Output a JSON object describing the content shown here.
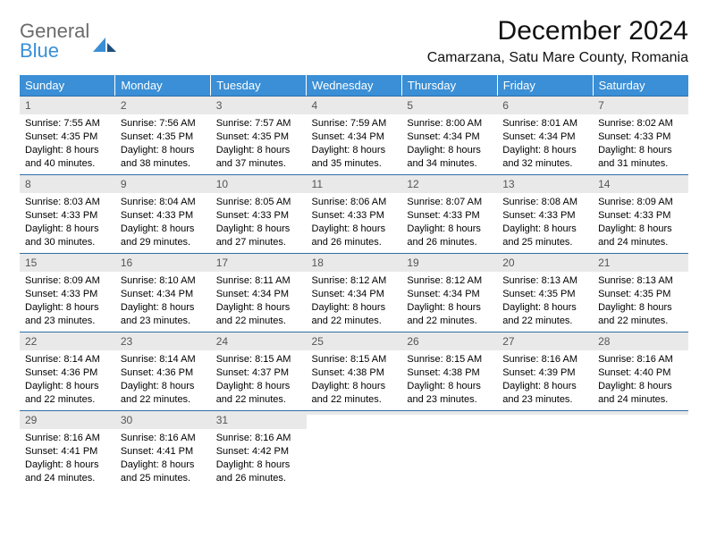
{
  "logo": {
    "text1": "General",
    "text2": "Blue"
  },
  "title": "December 2024",
  "location": "Camarzana, Satu Mare County, Romania",
  "colors": {
    "header_bg": "#3a8fd6",
    "header_text": "#ffffff",
    "daynum_bg": "#e9e9e9",
    "daynum_border": "#2f6fa8",
    "logo_gray": "#6b6b6b",
    "logo_blue": "#3a8fd6",
    "body_text": "#000000",
    "page_bg": "#ffffff"
  },
  "weekdays": [
    "Sunday",
    "Monday",
    "Tuesday",
    "Wednesday",
    "Thursday",
    "Friday",
    "Saturday"
  ],
  "weeks": [
    [
      {
        "n": "1",
        "sr": "Sunrise: 7:55 AM",
        "ss": "Sunset: 4:35 PM",
        "d1": "Daylight: 8 hours",
        "d2": "and 40 minutes."
      },
      {
        "n": "2",
        "sr": "Sunrise: 7:56 AM",
        "ss": "Sunset: 4:35 PM",
        "d1": "Daylight: 8 hours",
        "d2": "and 38 minutes."
      },
      {
        "n": "3",
        "sr": "Sunrise: 7:57 AM",
        "ss": "Sunset: 4:35 PM",
        "d1": "Daylight: 8 hours",
        "d2": "and 37 minutes."
      },
      {
        "n": "4",
        "sr": "Sunrise: 7:59 AM",
        "ss": "Sunset: 4:34 PM",
        "d1": "Daylight: 8 hours",
        "d2": "and 35 minutes."
      },
      {
        "n": "5",
        "sr": "Sunrise: 8:00 AM",
        "ss": "Sunset: 4:34 PM",
        "d1": "Daylight: 8 hours",
        "d2": "and 34 minutes."
      },
      {
        "n": "6",
        "sr": "Sunrise: 8:01 AM",
        "ss": "Sunset: 4:34 PM",
        "d1": "Daylight: 8 hours",
        "d2": "and 32 minutes."
      },
      {
        "n": "7",
        "sr": "Sunrise: 8:02 AM",
        "ss": "Sunset: 4:33 PM",
        "d1": "Daylight: 8 hours",
        "d2": "and 31 minutes."
      }
    ],
    [
      {
        "n": "8",
        "sr": "Sunrise: 8:03 AM",
        "ss": "Sunset: 4:33 PM",
        "d1": "Daylight: 8 hours",
        "d2": "and 30 minutes."
      },
      {
        "n": "9",
        "sr": "Sunrise: 8:04 AM",
        "ss": "Sunset: 4:33 PM",
        "d1": "Daylight: 8 hours",
        "d2": "and 29 minutes."
      },
      {
        "n": "10",
        "sr": "Sunrise: 8:05 AM",
        "ss": "Sunset: 4:33 PM",
        "d1": "Daylight: 8 hours",
        "d2": "and 27 minutes."
      },
      {
        "n": "11",
        "sr": "Sunrise: 8:06 AM",
        "ss": "Sunset: 4:33 PM",
        "d1": "Daylight: 8 hours",
        "d2": "and 26 minutes."
      },
      {
        "n": "12",
        "sr": "Sunrise: 8:07 AM",
        "ss": "Sunset: 4:33 PM",
        "d1": "Daylight: 8 hours",
        "d2": "and 26 minutes."
      },
      {
        "n": "13",
        "sr": "Sunrise: 8:08 AM",
        "ss": "Sunset: 4:33 PM",
        "d1": "Daylight: 8 hours",
        "d2": "and 25 minutes."
      },
      {
        "n": "14",
        "sr": "Sunrise: 8:09 AM",
        "ss": "Sunset: 4:33 PM",
        "d1": "Daylight: 8 hours",
        "d2": "and 24 minutes."
      }
    ],
    [
      {
        "n": "15",
        "sr": "Sunrise: 8:09 AM",
        "ss": "Sunset: 4:33 PM",
        "d1": "Daylight: 8 hours",
        "d2": "and 23 minutes."
      },
      {
        "n": "16",
        "sr": "Sunrise: 8:10 AM",
        "ss": "Sunset: 4:34 PM",
        "d1": "Daylight: 8 hours",
        "d2": "and 23 minutes."
      },
      {
        "n": "17",
        "sr": "Sunrise: 8:11 AM",
        "ss": "Sunset: 4:34 PM",
        "d1": "Daylight: 8 hours",
        "d2": "and 22 minutes."
      },
      {
        "n": "18",
        "sr": "Sunrise: 8:12 AM",
        "ss": "Sunset: 4:34 PM",
        "d1": "Daylight: 8 hours",
        "d2": "and 22 minutes."
      },
      {
        "n": "19",
        "sr": "Sunrise: 8:12 AM",
        "ss": "Sunset: 4:34 PM",
        "d1": "Daylight: 8 hours",
        "d2": "and 22 minutes."
      },
      {
        "n": "20",
        "sr": "Sunrise: 8:13 AM",
        "ss": "Sunset: 4:35 PM",
        "d1": "Daylight: 8 hours",
        "d2": "and 22 minutes."
      },
      {
        "n": "21",
        "sr": "Sunrise: 8:13 AM",
        "ss": "Sunset: 4:35 PM",
        "d1": "Daylight: 8 hours",
        "d2": "and 22 minutes."
      }
    ],
    [
      {
        "n": "22",
        "sr": "Sunrise: 8:14 AM",
        "ss": "Sunset: 4:36 PM",
        "d1": "Daylight: 8 hours",
        "d2": "and 22 minutes."
      },
      {
        "n": "23",
        "sr": "Sunrise: 8:14 AM",
        "ss": "Sunset: 4:36 PM",
        "d1": "Daylight: 8 hours",
        "d2": "and 22 minutes."
      },
      {
        "n": "24",
        "sr": "Sunrise: 8:15 AM",
        "ss": "Sunset: 4:37 PM",
        "d1": "Daylight: 8 hours",
        "d2": "and 22 minutes."
      },
      {
        "n": "25",
        "sr": "Sunrise: 8:15 AM",
        "ss": "Sunset: 4:38 PM",
        "d1": "Daylight: 8 hours",
        "d2": "and 22 minutes."
      },
      {
        "n": "26",
        "sr": "Sunrise: 8:15 AM",
        "ss": "Sunset: 4:38 PM",
        "d1": "Daylight: 8 hours",
        "d2": "and 23 minutes."
      },
      {
        "n": "27",
        "sr": "Sunrise: 8:16 AM",
        "ss": "Sunset: 4:39 PM",
        "d1": "Daylight: 8 hours",
        "d2": "and 23 minutes."
      },
      {
        "n": "28",
        "sr": "Sunrise: 8:16 AM",
        "ss": "Sunset: 4:40 PM",
        "d1": "Daylight: 8 hours",
        "d2": "and 24 minutes."
      }
    ],
    [
      {
        "n": "29",
        "sr": "Sunrise: 8:16 AM",
        "ss": "Sunset: 4:41 PM",
        "d1": "Daylight: 8 hours",
        "d2": "and 24 minutes."
      },
      {
        "n": "30",
        "sr": "Sunrise: 8:16 AM",
        "ss": "Sunset: 4:41 PM",
        "d1": "Daylight: 8 hours",
        "d2": "and 25 minutes."
      },
      {
        "n": "31",
        "sr": "Sunrise: 8:16 AM",
        "ss": "Sunset: 4:42 PM",
        "d1": "Daylight: 8 hours",
        "d2": "and 26 minutes."
      },
      {
        "empty": true,
        "n": " "
      },
      {
        "empty": true,
        "n": " "
      },
      {
        "empty": true,
        "n": " "
      },
      {
        "empty": true,
        "n": " "
      }
    ]
  ]
}
